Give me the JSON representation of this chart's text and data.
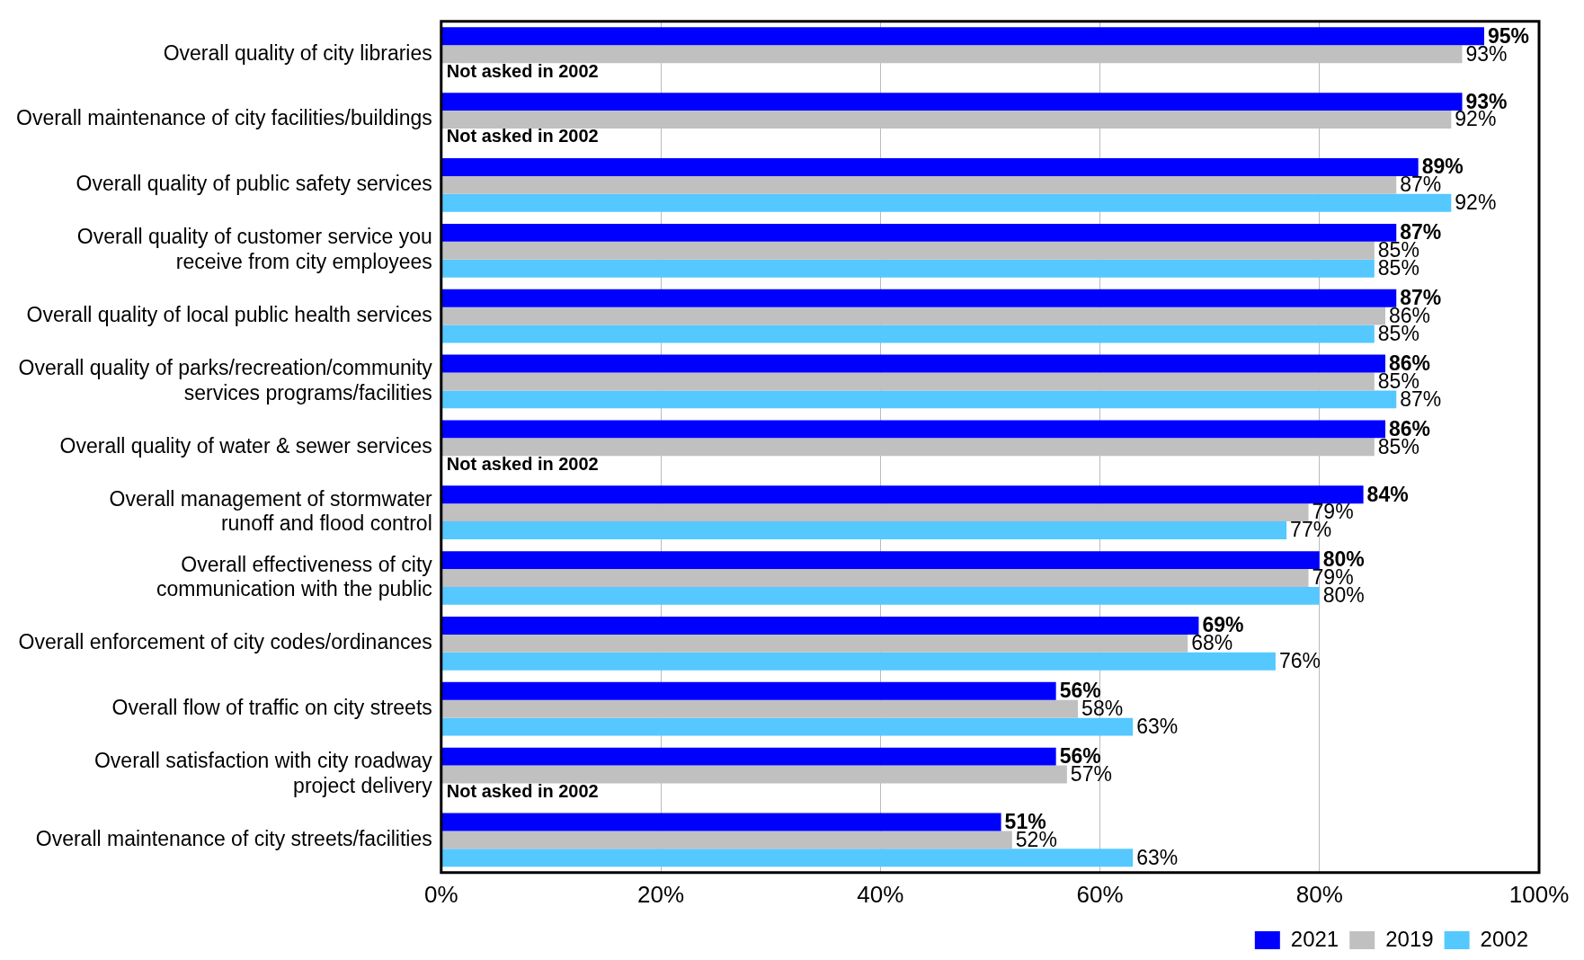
{
  "chart_data": {
    "type": "bar",
    "orientation": "horizontal",
    "categories": [
      "Overall quality of city libraries",
      "Overall maintenance of city facilities/buildings",
      "Overall quality of public safety services",
      "Overall quality of customer service you\nreceive from city employees",
      "Overall quality of local public health services",
      "Overall quality of parks/recreation/community\nservices programs/facilities",
      "Overall quality of water & sewer services",
      "Overall management of stormwater\nrunoff and flood control",
      "Overall effectiveness of city\ncommunication with the public",
      "Overall enforcement of city codes/ordinances",
      "Overall flow of traffic on city streets",
      "Overall satisfaction with city roadway\nproject delivery",
      "Overall maintenance of city streets/facilities"
    ],
    "series": [
      {
        "name": "2021",
        "color": "#0000ff",
        "values": [
          95,
          93,
          89,
          87,
          87,
          86,
          86,
          84,
          80,
          69,
          56,
          56,
          51
        ],
        "value_labels": [
          "95%",
          "93%",
          "89%",
          "87%",
          "87%",
          "86%",
          "86%",
          "84%",
          "80%",
          "69%",
          "56%",
          "56%",
          "51%"
        ]
      },
      {
        "name": "2019",
        "color": "#c0c0c0",
        "values": [
          93,
          92,
          87,
          85,
          86,
          85,
          85,
          79,
          79,
          68,
          58,
          57,
          52
        ],
        "value_labels": [
          "93%",
          "92%",
          "87%",
          "85%",
          "86%",
          "85%",
          "85%",
          "79%",
          "79%",
          "68%",
          "58%",
          "57%",
          "52%"
        ]
      },
      {
        "name": "2002",
        "color": "#55c8ff",
        "values": [
          null,
          null,
          92,
          85,
          85,
          87,
          null,
          77,
          80,
          76,
          63,
          null,
          63
        ],
        "value_labels": [
          null,
          null,
          "92%",
          "85%",
          "85%",
          "87%",
          null,
          "77%",
          "80%",
          "76%",
          "63%",
          null,
          "63%"
        ]
      }
    ],
    "xlim": [
      0,
      100
    ],
    "xticks": [
      {
        "value": 0,
        "label": "0%"
      },
      {
        "value": 20,
        "label": "20%"
      },
      {
        "value": 40,
        "label": "40%"
      },
      {
        "value": 60,
        "label": "60%"
      },
      {
        "value": 80,
        "label": "80%"
      },
      {
        "value": 100,
        "label": "100%"
      }
    ],
    "grid": "x",
    "legend": "bottom",
    "annotations": [
      "Not asked in 2002",
      "Not asked in 2002",
      "Not asked in 2002",
      "Not asked in 2002"
    ]
  }
}
